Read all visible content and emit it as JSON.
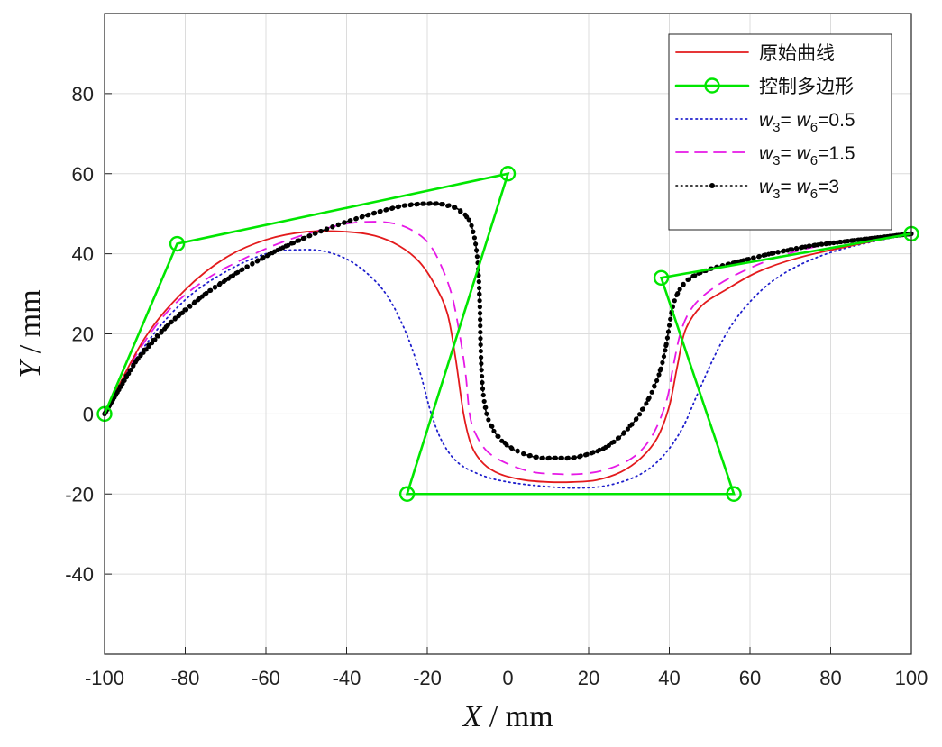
{
  "chart_data": {
    "type": "line",
    "xlabel": {
      "var": "X",
      "unit": " / mm"
    },
    "ylabel": {
      "var": "Y",
      "unit": " / mm"
    },
    "xlim": [
      -100,
      100
    ],
    "ylim": [
      -60,
      100
    ],
    "xticks": [
      -100,
      -80,
      -60,
      -40,
      -20,
      0,
      20,
      40,
      60,
      80,
      100
    ],
    "yticks": [
      -40,
      -20,
      0,
      20,
      40,
      60,
      80
    ],
    "grid": true,
    "legend_position": "top-right",
    "colors": {
      "original": "#e31a1c",
      "polygon": "#00e600",
      "w05": "#1f1fcc",
      "w15": "#e619e6",
      "w3": "#000000"
    },
    "series": [
      {
        "name": "原始曲线",
        "style": "solid",
        "x": [
          -100,
          -90,
          -80,
          -70,
          -60,
          -50,
          -40,
          -33,
          -27,
          -22,
          -18,
          -15,
          -13,
          -11,
          -9,
          -6,
          -2,
          4,
          10,
          16,
          22,
          28,
          33,
          37,
          40,
          42,
          44,
          48,
          54,
          62,
          72,
          85,
          100
        ],
        "y": [
          0,
          19,
          31,
          39,
          43.5,
          45.5,
          45.5,
          44.5,
          42,
          38,
          32,
          25,
          14,
          0,
          -8,
          -12.5,
          -15,
          -16.5,
          -17,
          -17,
          -16.5,
          -14.5,
          -11,
          -6,
          2,
          12,
          21,
          27,
          31,
          35.5,
          39,
          42,
          45
        ]
      },
      {
        "name": "控制多边形",
        "style": "solid-markers",
        "x": [
          -100,
          -82,
          0,
          -25,
          56,
          38,
          100
        ],
        "y": [
          0,
          42.5,
          60,
          -20,
          -20,
          34,
          45
        ]
      },
      {
        "name": "w3=w6=0.5",
        "style": "dotted",
        "x": [
          -100,
          -90,
          -80,
          -70,
          -60,
          -52,
          -45,
          -38,
          -31,
          -26,
          -22,
          -19,
          -16,
          -12,
          -6,
          0,
          8,
          16,
          24,
          32,
          38,
          43,
          47,
          51,
          55,
          60,
          66,
          74,
          84,
          100
        ],
        "y": [
          0,
          17,
          28.5,
          35.5,
          40,
          41,
          40.5,
          37.5,
          31,
          22,
          11,
          0,
          -7.5,
          -12.5,
          -15.5,
          -17,
          -18,
          -18.5,
          -18,
          -15.5,
          -11,
          -4,
          5,
          14,
          21.5,
          28,
          33.5,
          38,
          41.5,
          45
        ]
      },
      {
        "name": "w3=w6=1.5",
        "style": "dashed",
        "x": [
          -100,
          -92,
          -84,
          -75,
          -66,
          -57,
          -48,
          -40,
          -33,
          -28,
          -24,
          -20,
          -17,
          -14,
          -12,
          -10.5,
          -9.5,
          -8,
          -5,
          0,
          6,
          12,
          18,
          24,
          30,
          34,
          37,
          39.5,
          41,
          43,
          46,
          51,
          57,
          65,
          75,
          87,
          100
        ],
        "y": [
          0,
          15,
          26,
          33.5,
          38.5,
          42.5,
          45.5,
          47.5,
          48,
          47.5,
          46,
          43,
          38,
          30,
          20,
          10,
          0,
          -5,
          -9.5,
          -12.5,
          -14.5,
          -15,
          -15,
          -14,
          -11.5,
          -8,
          -3,
          4,
          12,
          21,
          27,
          31.5,
          35,
          38.5,
          41.5,
          43.5,
          45
        ]
      },
      {
        "name": "w3=w6=3",
        "style": "dotted-markers",
        "x": [
          -100,
          -92,
          -84,
          -75,
          -66,
          -57,
          -48,
          -40,
          -32,
          -26,
          -21,
          -17,
          -13,
          -10,
          -8.5,
          -7.5,
          -7,
          -6.8,
          -6.5,
          -6,
          -5,
          -3,
          0,
          4,
          8,
          12,
          16,
          20,
          24,
          28,
          32,
          35,
          37.5,
          39,
          40,
          40.8,
          42,
          44,
          47,
          51,
          57,
          65,
          75,
          87,
          100
        ],
        "y": [
          0,
          13.5,
          22.5,
          30,
          36,
          41,
          45,
          48,
          50.5,
          52,
          52.5,
          52.5,
          51.5,
          49,
          45,
          38,
          28,
          18,
          10,
          4,
          -1,
          -5,
          -8,
          -10,
          -11,
          -11,
          -11,
          -10,
          -8.5,
          -5.5,
          -1,
          4,
          10,
          16,
          22,
          26.5,
          30,
          33,
          35,
          36.5,
          38,
          40,
          42,
          43.5,
          45
        ]
      }
    ]
  }
}
